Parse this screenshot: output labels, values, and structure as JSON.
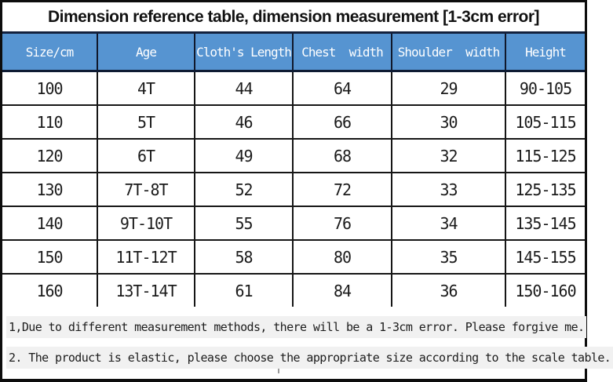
{
  "title": "Dimension reference table, dimension measurement [1-3cm error]",
  "table": {
    "headers": [
      "Size/cm",
      "Age",
      "Cloth's Length",
      "Chest  width",
      "Shoulder  width",
      "Height"
    ],
    "rows": [
      [
        "100",
        "4T",
        "44",
        "64",
        "29",
        "90-105"
      ],
      [
        "110",
        "5T",
        "46",
        "66",
        "30",
        "105-115"
      ],
      [
        "120",
        "6T",
        "49",
        "68",
        "32",
        "115-125"
      ],
      [
        "130",
        "7T-8T",
        "52",
        "72",
        "33",
        "125-135"
      ],
      [
        "140",
        "9T-10T",
        "55",
        "76",
        "34",
        "135-145"
      ],
      [
        "150",
        "11T-12T",
        "58",
        "80",
        "35",
        "145-155"
      ],
      [
        "160",
        "13T-14T",
        "61",
        "84",
        "36",
        "150-160"
      ]
    ]
  },
  "notes": [
    "1,Due to different measurement methods, there will be a 1-3cm error. Please forgive me.",
    "2. The product is elastic, please choose the appropriate size according to the scale table."
  ],
  "colors": {
    "header_bg": "#5694d1",
    "header_text": "#ffffff",
    "header_border": "#10182b",
    "grid_border": "#161616",
    "note_highlight": "#f1f1f1"
  }
}
